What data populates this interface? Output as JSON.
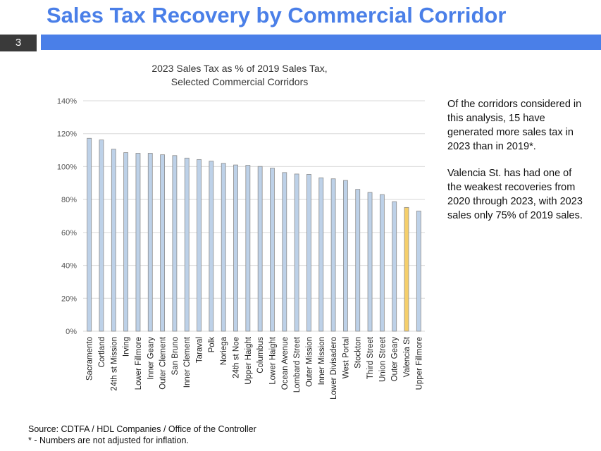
{
  "slide": {
    "title": "Sales Tax Recovery by Commercial Corridor",
    "page_number": "3",
    "accent_color": "#4a7fe8"
  },
  "side_text": [
    "Of the corridors considered in this analysis, 15 have generated more sales tax in 2023 than in 2019*.",
    "Valencia St. has had one of the weakest recoveries from 2020 through 2023, with 2023 sales only 75% of 2019 sales."
  ],
  "footer": {
    "source": "Source: CDTFA / HDL Companies / Office of the Controller",
    "note": "* - Numbers are not adjusted for inflation."
  },
  "chart_data": {
    "type": "bar",
    "title": "2023 Sales Tax as % of 2019 Sales Tax,",
    "subtitle": "Selected Commercial Corridors",
    "ylim": [
      0,
      140
    ],
    "yticks": [
      "0%",
      "20%",
      "40%",
      "60%",
      "80%",
      "100%",
      "120%",
      "140%"
    ],
    "grid": true,
    "bar_color": "#bdd1e8",
    "highlight_color": "#f5cf6b",
    "highlight": "Valencia St",
    "categories": [
      "Sacramento",
      "Cortland",
      "24th st Mission",
      "Irving",
      "Lower Fillmore",
      "Inner Geary",
      "Outer Clement",
      "San Bruno",
      "Inner Clement",
      "Taraval",
      "Polk",
      "Noriega",
      "24th st Noe",
      "Upper Haight",
      "Columbus",
      "Lower Haight",
      "Ocean Avenue",
      "Lombard Street",
      "Outer Mission",
      "Inner Mission",
      "Lower Divisadero",
      "West Portal",
      "Stockton",
      "Third Street",
      "Union Street",
      "Outer Geary",
      "Valencia St",
      "Upper Fillmore"
    ],
    "values": [
      117.2,
      116.2,
      110.6,
      108.5,
      108.1,
      108.1,
      107.2,
      106.7,
      105.2,
      104.3,
      103.3,
      102,
      101,
      100.8,
      100.1,
      99.1,
      96.4,
      95.5,
      95.3,
      93.2,
      92.6,
      91.6,
      86.2,
      84.3,
      83,
      78.7,
      75.2,
      73
    ]
  }
}
